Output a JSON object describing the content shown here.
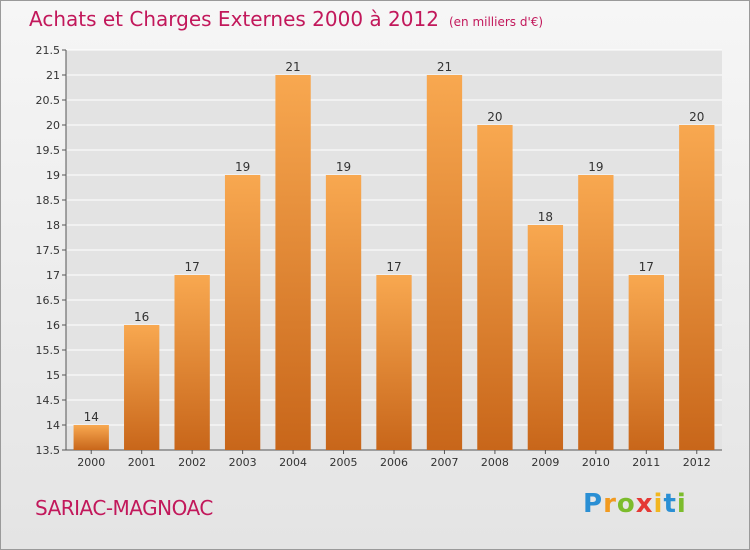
{
  "page": {
    "title": "Achats et Charges Externes 2000 à 2012",
    "subtitle": "(en milliers d'€)",
    "commune": "SARIAC-MAGNOAC",
    "logo_letters": [
      {
        "ch": "P",
        "color": "#2a8fd4"
      },
      {
        "ch": "r",
        "color": "#f29a1f"
      },
      {
        "ch": "o",
        "color": "#7cbc2c"
      },
      {
        "ch": "x",
        "color": "#e53935"
      },
      {
        "ch": "i",
        "color": "#f2b61f"
      },
      {
        "ch": "t",
        "color": "#2a8fd4"
      },
      {
        "ch": "i",
        "color": "#7cbc2c"
      }
    ]
  },
  "colors": {
    "bar_light": "#f8a850",
    "bar_dark": "#c8661a",
    "title": "#c2185b",
    "grid": "#ffffff",
    "plot_bg": "#e3e3e3"
  },
  "chart_data": {
    "type": "bar",
    "categories": [
      "2000",
      "2001",
      "2002",
      "2003",
      "2004",
      "2005",
      "2006",
      "2007",
      "2008",
      "2009",
      "2010",
      "2011",
      "2012"
    ],
    "values": [
      14,
      16,
      17,
      19,
      21,
      19,
      17,
      21,
      20,
      18,
      19,
      17,
      20
    ],
    "value_labels": [
      "14",
      "16",
      "17",
      "19",
      "21",
      "19",
      "17",
      "21",
      "20",
      "18",
      "19",
      "17",
      "20"
    ],
    "title": "Achats et Charges Externes 2000 à 2012",
    "ylim": [
      13.5,
      21.5
    ],
    "yticks": [
      13.5,
      14,
      14.5,
      15,
      15.5,
      16,
      16.5,
      17,
      17.5,
      18,
      18.5,
      19,
      19.5,
      20,
      20.5,
      21,
      21.5
    ],
    "ytick_labels": [
      "13.5",
      "14",
      "14.5",
      "15",
      "15.5",
      "16",
      "16.5",
      "17",
      "17.5",
      "18",
      "18.5",
      "19",
      "19.5",
      "20",
      "20.5",
      "21",
      "21.5"
    ],
    "grid": true
  }
}
